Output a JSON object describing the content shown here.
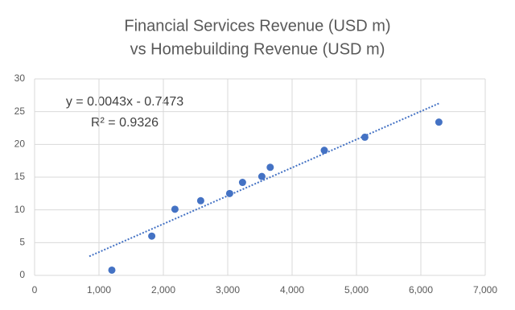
{
  "chart_data": {
    "type": "scatter",
    "title": [
      "Financial Services Revenue (USD m)",
      "vs Homebuilding Revenue (USD m)"
    ],
    "color": "#4472c4",
    "x": [
      1200,
      1820,
      2180,
      2580,
      3030,
      3230,
      3530,
      3660,
      4500,
      5130,
      6280
    ],
    "values": [
      0.8,
      6.0,
      10.1,
      11.4,
      12.5,
      14.2,
      15.1,
      16.5,
      19.1,
      21.1,
      23.4
    ],
    "xlim": [
      0,
      7000
    ],
    "xticks": [
      0,
      {
        "value": 1000,
        "label": "1,000"
      },
      {
        "value": 2000,
        "label": "2,000"
      },
      {
        "value": 3000,
        "label": "3,000"
      },
      {
        "value": 4000,
        "label": "4,000"
      },
      {
        "value": 5000,
        "label": "5,000"
      },
      {
        "value": 6000,
        "label": "6,000"
      },
      {
        "value": 7000,
        "label": "7,000"
      }
    ],
    "ylim": [
      0,
      30
    ],
    "yticks": [
      0,
      5,
      10,
      15,
      20,
      25,
      30
    ],
    "grid": true,
    "trendline": {
      "slope": 0.0043,
      "intercept": -0.7473,
      "x": [
        850,
        6280
      ],
      "color": "#4472c4",
      "label": "y = 0.0043x - 0.7473",
      "r2_label": "R² = 0.9326"
    }
  }
}
